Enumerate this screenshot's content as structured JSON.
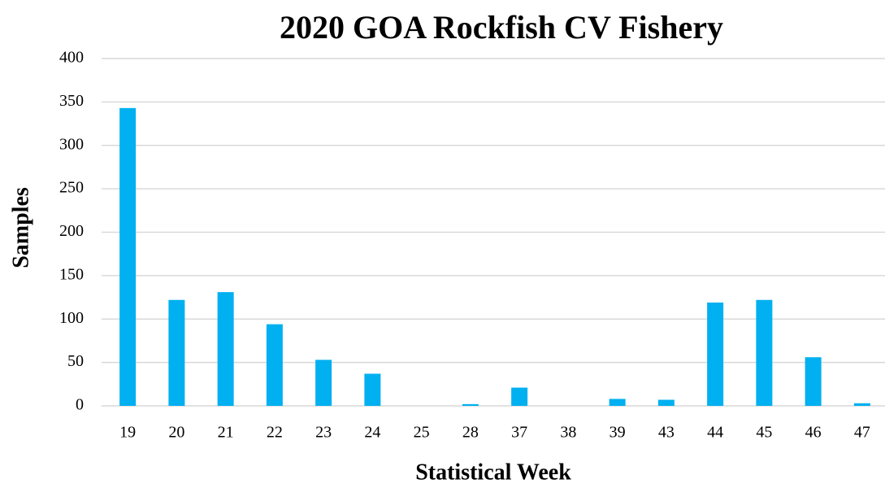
{
  "chart_data": {
    "type": "bar",
    "title": "2020 GOA Rockfish CV Fishery",
    "x_label": "Statistical Week",
    "y_label": "Samples",
    "categories": [
      "19",
      "20",
      "21",
      "22",
      "23",
      "24",
      "25",
      "28",
      "37",
      "38",
      "39",
      "43",
      "44",
      "45",
      "46",
      "47"
    ],
    "values": [
      343,
      122,
      131,
      94,
      53,
      37,
      0,
      2,
      21,
      0,
      8,
      7,
      119,
      122,
      56,
      3
    ],
    "color": "#00b0f0",
    "ylim": [
      0,
      400
    ],
    "yticks": [
      0,
      50,
      100,
      150,
      200,
      250,
      300,
      350,
      400
    ],
    "grid": true
  }
}
